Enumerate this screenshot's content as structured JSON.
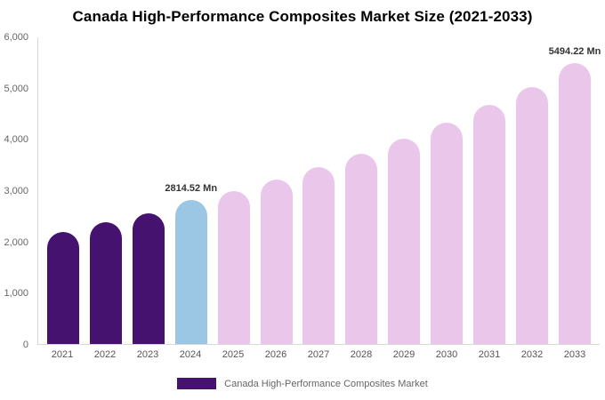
{
  "title": "Canada High-Performance Composites Market Size (2021-2033)",
  "colors": {
    "historical": "#45136F",
    "highlight": "#9BC7E4",
    "forecast": "#EAC7EA",
    "axis_line": "#d8d8d8"
  },
  "y_axis": {
    "ticks": [
      "0",
      "1,000",
      "2,000",
      "3,000",
      "4,000",
      "5,000",
      "6,000"
    ],
    "max": 6000
  },
  "legend": {
    "label": "Canada High-Performance Composites Market",
    "swatch_color": "#45136F"
  },
  "chart_data": {
    "type": "bar",
    "title": "Canada High-Performance Composites Market Size (2021-2033)",
    "categories": [
      "2021",
      "2022",
      "2023",
      "2024",
      "2025",
      "2026",
      "2027",
      "2028",
      "2029",
      "2030",
      "2031",
      "2032",
      "2033"
    ],
    "values": [
      2200,
      2380,
      2560,
      2814.52,
      2990,
      3220,
      3460,
      3730,
      4020,
      4330,
      4670,
      5030,
      5494.22
    ],
    "unit": "Mn",
    "color_keys": [
      "historical",
      "historical",
      "historical",
      "highlight",
      "forecast",
      "forecast",
      "forecast",
      "forecast",
      "forecast",
      "forecast",
      "forecast",
      "forecast",
      "forecast"
    ],
    "annotations": [
      {
        "category": "2024",
        "text": "2814.52 Mn"
      },
      {
        "category": "2033",
        "text": "5494.22 Mn"
      }
    ],
    "xlabel": "",
    "ylabel": "",
    "ylim": [
      0,
      6000
    ],
    "grid": false,
    "legend_position": "bottom"
  }
}
